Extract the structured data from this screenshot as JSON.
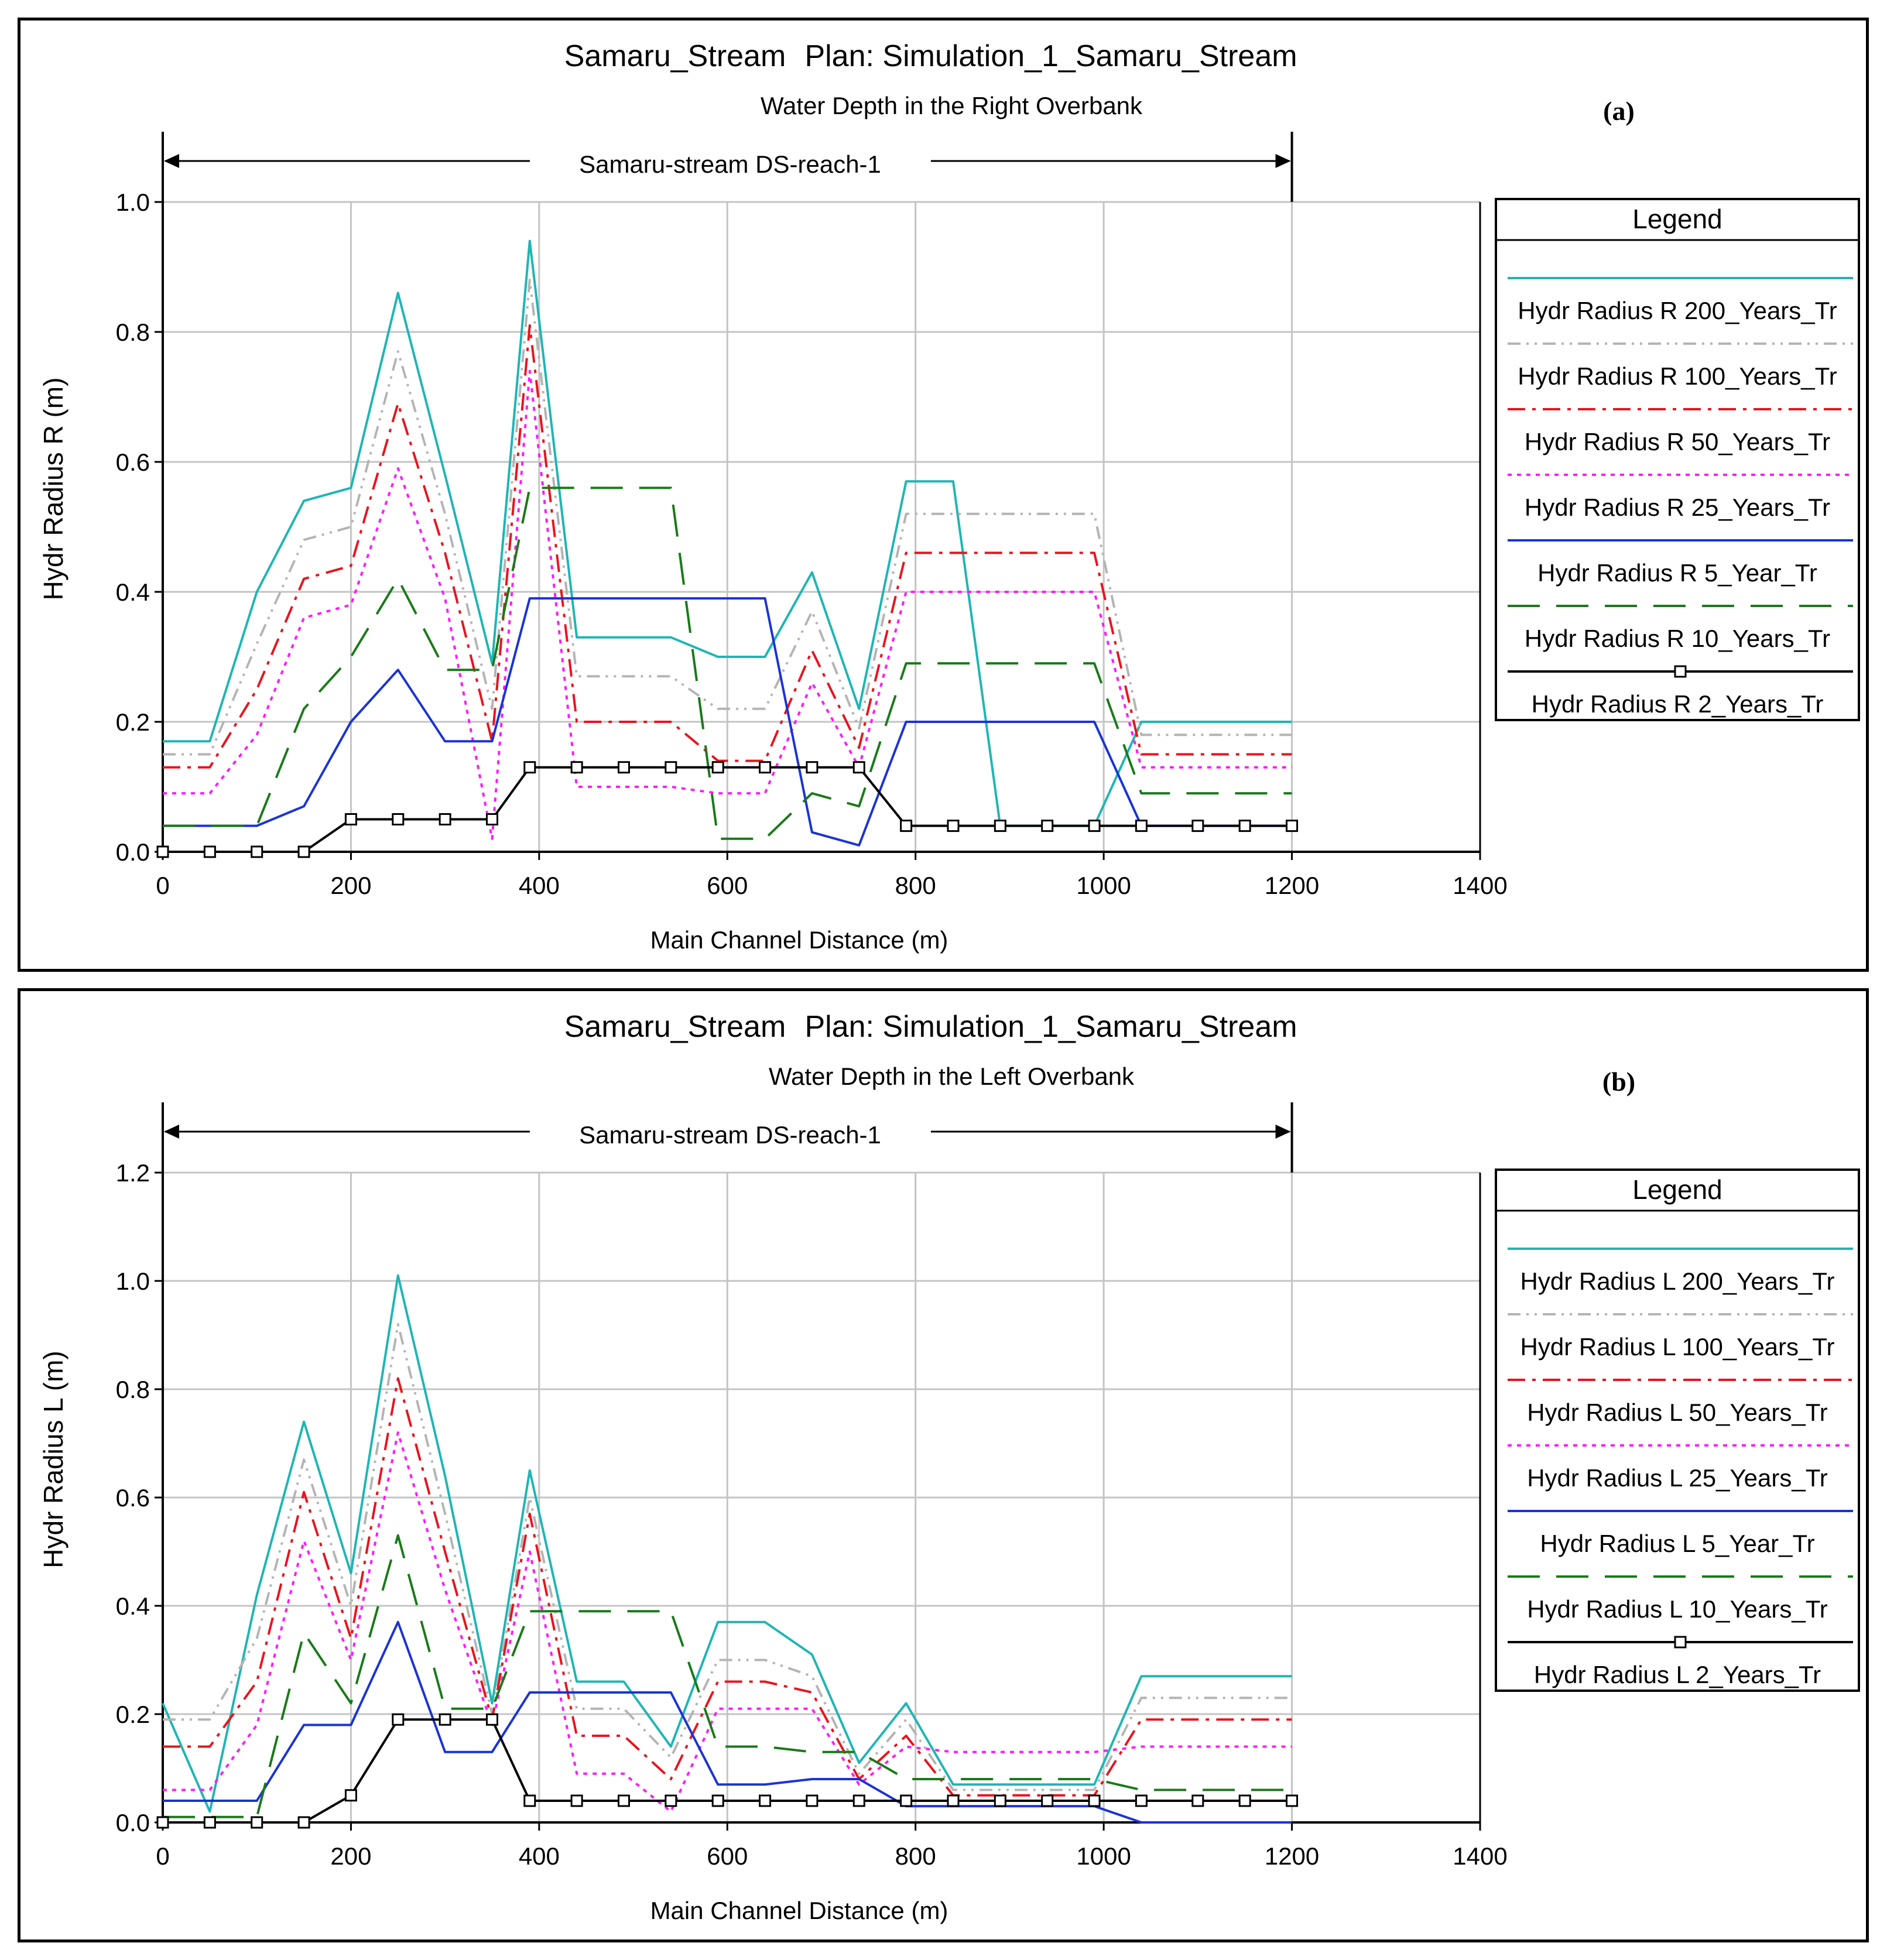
{
  "colors": {
    "t200": "#1fb5b5",
    "t100": "#b4b4b4",
    "t50": "#e8141e",
    "t25": "#ff19ff",
    "t5": "#1a33d6",
    "t10": "#197a19",
    "t2": "#000000",
    "grid": "#c4c4c4"
  },
  "chart_data": [
    {
      "type": "line",
      "panel_label": "(a)",
      "title": "Samaru_Stream",
      "plan": "Plan: Simulation_1_Samaru_Stream",
      "subtitle": "Water Depth in the Right Overbank",
      "reach": "Samaru-stream DS-reach-1",
      "reach_range": [
        0,
        1200
      ],
      "xlabel": "Main Channel Distance (m)",
      "ylabel": "Hydr Radius R (m)",
      "xlim": [
        0,
        1400
      ],
      "ylim": [
        0,
        1.0
      ],
      "xticks": [
        "0",
        "200",
        "400",
        "600",
        "800",
        "1000",
        "1200",
        "1400"
      ],
      "xtick_values": [
        0,
        200,
        400,
        600,
        800,
        1000,
        1200,
        1400
      ],
      "yticks": [
        "0.0",
        "0.2",
        "0.4",
        "0.6",
        "0.8",
        "1.0"
      ],
      "ytick_values": [
        0,
        0.2,
        0.4,
        0.6,
        0.8,
        1.0
      ],
      "grid": true,
      "legend_title": "Legend",
      "legend_position": "right",
      "series": [
        {
          "key": "t200",
          "name": "Hydr Radius R 200_Years_Tr",
          "style": "solid",
          "x": [
            0,
            50,
            100,
            150,
            200,
            250,
            300,
            350,
            390,
            440,
            540,
            590,
            640,
            690,
            740,
            790,
            840,
            890,
            940,
            990,
            1040,
            1200
          ],
          "y": [
            0.17,
            0.17,
            0.4,
            0.54,
            0.56,
            0.86,
            0.58,
            0.29,
            0.94,
            0.33,
            0.33,
            0.3,
            0.3,
            0.43,
            0.22,
            0.57,
            0.57,
            0.04,
            0.04,
            0.04,
            0.2,
            0.2
          ]
        },
        {
          "key": "t100",
          "name": "Hydr Radius R 100_Years_Tr",
          "style": "dashdotdot",
          "x": [
            0,
            50,
            100,
            150,
            200,
            250,
            300,
            350,
            390,
            440,
            540,
            590,
            640,
            690,
            740,
            790,
            840,
            990,
            1040,
            1200
          ],
          "y": [
            0.15,
            0.15,
            0.32,
            0.48,
            0.5,
            0.77,
            0.52,
            0.22,
            0.88,
            0.27,
            0.27,
            0.22,
            0.22,
            0.37,
            0.19,
            0.52,
            0.52,
            0.52,
            0.18,
            0.18
          ]
        },
        {
          "key": "t50",
          "name": "Hydr Radius R 50_Years_Tr",
          "style": "dashdot",
          "x": [
            0,
            50,
            100,
            150,
            200,
            250,
            300,
            350,
            390,
            440,
            540,
            590,
            640,
            690,
            740,
            790,
            840,
            990,
            1040,
            1200
          ],
          "y": [
            0.13,
            0.13,
            0.25,
            0.42,
            0.44,
            0.69,
            0.46,
            0.17,
            0.81,
            0.2,
            0.2,
            0.14,
            0.14,
            0.31,
            0.16,
            0.46,
            0.46,
            0.46,
            0.15,
            0.15
          ]
        },
        {
          "key": "t25",
          "name": "Hydr Radius R 25_Years_Tr",
          "style": "dot",
          "x": [
            0,
            50,
            100,
            150,
            200,
            250,
            300,
            350,
            390,
            440,
            540,
            590,
            640,
            690,
            740,
            790,
            840,
            990,
            1040,
            1200
          ],
          "y": [
            0.09,
            0.09,
            0.18,
            0.36,
            0.38,
            0.59,
            0.39,
            0.02,
            0.74,
            0.1,
            0.1,
            0.09,
            0.09,
            0.26,
            0.13,
            0.4,
            0.4,
            0.4,
            0.13,
            0.13
          ]
        },
        {
          "key": "t5",
          "name": "Hydr Radius R 5_Year_Tr",
          "style": "solid",
          "x": [
            0,
            50,
            100,
            150,
            200,
            250,
            300,
            350,
            390,
            640,
            690,
            740,
            790,
            990,
            1040,
            1200
          ],
          "y": [
            0.04,
            0.04,
            0.04,
            0.07,
            0.2,
            0.28,
            0.17,
            0.17,
            0.39,
            0.39,
            0.03,
            0.01,
            0.2,
            0.2,
            0.04,
            0.04
          ]
        },
        {
          "key": "t10",
          "name": "Hydr Radius R 10_Years_Tr",
          "style": "longdash",
          "x": [
            0,
            50,
            100,
            150,
            200,
            250,
            300,
            350,
            390,
            540,
            590,
            640,
            690,
            740,
            790,
            840,
            990,
            1040,
            1200
          ],
          "y": [
            0.04,
            0.04,
            0.04,
            0.22,
            0.3,
            0.42,
            0.28,
            0.28,
            0.56,
            0.56,
            0.02,
            0.02,
            0.09,
            0.07,
            0.29,
            0.29,
            0.29,
            0.09,
            0.09
          ]
        },
        {
          "key": "t2",
          "name": "Hydr Radius R 2_Years_Tr",
          "style": "marker",
          "x": [
            0,
            50,
            100,
            150,
            200,
            250,
            300,
            350,
            390,
            440,
            490,
            540,
            590,
            640,
            690,
            740,
            790,
            840,
            890,
            940,
            990,
            1040,
            1100,
            1150,
            1200
          ],
          "y": [
            0,
            0,
            0,
            0,
            0.05,
            0.05,
            0.05,
            0.05,
            0.13,
            0.13,
            0.13,
            0.13,
            0.13,
            0.13,
            0.13,
            0.13,
            0.04,
            0.04,
            0.04,
            0.04,
            0.04,
            0.04,
            0.04,
            0.04,
            0.04
          ]
        }
      ]
    },
    {
      "type": "line",
      "panel_label": "(b)",
      "title": "Samaru_Stream",
      "plan": "Plan: Simulation_1_Samaru_Stream",
      "subtitle": "Water Depth in the Left Overbank",
      "reach": "Samaru-stream DS-reach-1",
      "reach_range": [
        0,
        1200
      ],
      "xlabel": "Main Channel Distance (m)",
      "ylabel": "Hydr Radius L (m)",
      "xlim": [
        0,
        1400
      ],
      "ylim": [
        0,
        1.2
      ],
      "xticks": [
        "0",
        "200",
        "400",
        "600",
        "800",
        "1000",
        "1200",
        "1400"
      ],
      "xtick_values": [
        0,
        200,
        400,
        600,
        800,
        1000,
        1200,
        1400
      ],
      "yticks": [
        "0.0",
        "0.2",
        "0.4",
        "0.6",
        "0.8",
        "1.0",
        "1.2"
      ],
      "ytick_values": [
        0,
        0.2,
        0.4,
        0.6,
        0.8,
        1.0,
        1.2
      ],
      "grid": true,
      "legend_title": "Legend",
      "legend_position": "right",
      "series": [
        {
          "key": "t200",
          "name": "Hydr Radius L 200_Years_Tr",
          "style": "solid",
          "x": [
            0,
            50,
            100,
            150,
            200,
            250,
            300,
            350,
            390,
            440,
            490,
            540,
            590,
            640,
            690,
            740,
            790,
            840,
            890,
            940,
            990,
            1040,
            1200
          ],
          "y": [
            0.22,
            0.02,
            0.42,
            0.74,
            0.46,
            1.01,
            0.64,
            0.22,
            0.65,
            0.26,
            0.26,
            0.14,
            0.37,
            0.37,
            0.31,
            0.11,
            0.22,
            0.07,
            0.07,
            0.07,
            0.07,
            0.27,
            0.27
          ]
        },
        {
          "key": "t100",
          "name": "Hydr Radius L 100_Years_Tr",
          "style": "dashdotdot",
          "x": [
            0,
            50,
            100,
            150,
            200,
            250,
            300,
            350,
            390,
            440,
            490,
            540,
            590,
            640,
            690,
            740,
            790,
            840,
            990,
            1040,
            1200
          ],
          "y": [
            0.19,
            0.19,
            0.34,
            0.67,
            0.4,
            0.92,
            0.57,
            0.2,
            0.6,
            0.21,
            0.21,
            0.12,
            0.3,
            0.3,
            0.27,
            0.09,
            0.19,
            0.06,
            0.06,
            0.23,
            0.23
          ]
        },
        {
          "key": "t50",
          "name": "Hydr Radius L 50_Years_Tr",
          "style": "dashdot",
          "x": [
            0,
            50,
            100,
            150,
            200,
            250,
            300,
            350,
            390,
            440,
            490,
            540,
            590,
            640,
            690,
            740,
            790,
            840,
            990,
            1040,
            1200
          ],
          "y": [
            0.14,
            0.14,
            0.26,
            0.61,
            0.34,
            0.82,
            0.5,
            0.19,
            0.57,
            0.16,
            0.16,
            0.08,
            0.26,
            0.26,
            0.24,
            0.08,
            0.16,
            0.05,
            0.05,
            0.19,
            0.19
          ]
        },
        {
          "key": "t25",
          "name": "Hydr Radius L 25_Years_Tr",
          "style": "dot",
          "x": [
            0,
            50,
            100,
            150,
            200,
            250,
            300,
            350,
            390,
            440,
            490,
            540,
            590,
            640,
            690,
            740,
            790,
            840,
            990,
            1040,
            1200
          ],
          "y": [
            0.06,
            0.06,
            0.18,
            0.52,
            0.3,
            0.72,
            0.43,
            0.18,
            0.5,
            0.09,
            0.09,
            0.02,
            0.21,
            0.21,
            0.21,
            0.07,
            0.14,
            0.13,
            0.13,
            0.14,
            0.14
          ]
        },
        {
          "key": "t5",
          "name": "Hydr Radius L 5_Year_Tr",
          "style": "solid",
          "x": [
            0,
            50,
            100,
            150,
            200,
            250,
            300,
            350,
            390,
            540,
            590,
            640,
            690,
            740,
            790,
            990,
            1040,
            1200
          ],
          "y": [
            0.04,
            0.04,
            0.04,
            0.18,
            0.18,
            0.37,
            0.13,
            0.13,
            0.24,
            0.24,
            0.07,
            0.07,
            0.08,
            0.08,
            0.03,
            0.03,
            0,
            0
          ]
        },
        {
          "key": "t10",
          "name": "Hydr Radius L 10_Years_Tr",
          "style": "longdash",
          "x": [
            0,
            50,
            100,
            150,
            200,
            250,
            300,
            350,
            390,
            540,
            590,
            640,
            690,
            740,
            790,
            840,
            990,
            1040,
            1200
          ],
          "y": [
            0.01,
            0.01,
            0.01,
            0.35,
            0.22,
            0.53,
            0.21,
            0.21,
            0.39,
            0.39,
            0.14,
            0.14,
            0.13,
            0.13,
            0.08,
            0.08,
            0.08,
            0.06,
            0.06
          ]
        },
        {
          "key": "t2",
          "name": "Hydr Radius L 2_Years_Tr",
          "style": "marker",
          "x": [
            0,
            50,
            100,
            150,
            200,
            250,
            300,
            350,
            390,
            440,
            490,
            540,
            590,
            640,
            690,
            740,
            790,
            840,
            890,
            940,
            990,
            1040,
            1100,
            1150,
            1200
          ],
          "y": [
            0,
            0,
            0,
            0,
            0.05,
            0.19,
            0.19,
            0.19,
            0.04,
            0.04,
            0.04,
            0.04,
            0.04,
            0.04,
            0.04,
            0.04,
            0.04,
            0.04,
            0.04,
            0.04,
            0.04,
            0.04,
            0.04,
            0.04,
            0.04
          ]
        }
      ]
    }
  ]
}
